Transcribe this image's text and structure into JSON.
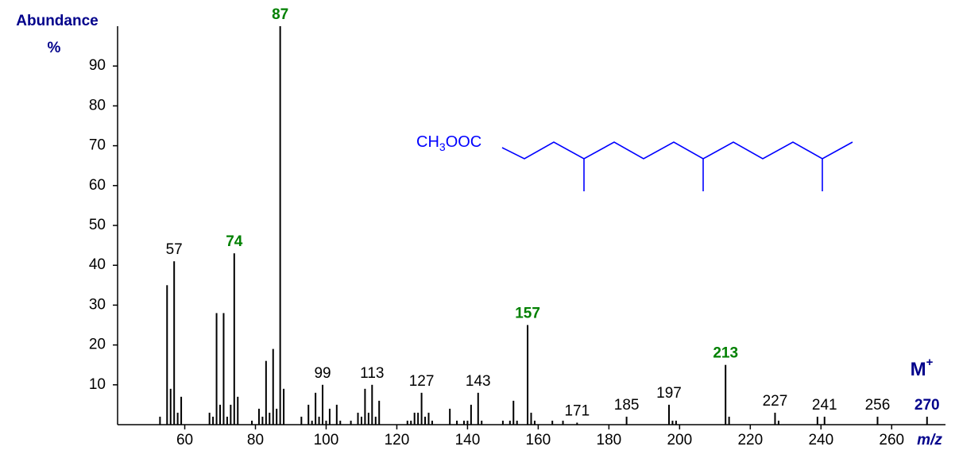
{
  "chart_data": {
    "type": "bar",
    "y_label": "Abundance",
    "y_unit": "%",
    "x_label": "m/z",
    "molecular_ion": {
      "symbol": "M",
      "charge": "+"
    },
    "structure": {
      "prefix": "CH",
      "subscript": "3",
      "suffix": "OOC"
    },
    "x": [
      53,
      55,
      56,
      57,
      58,
      59,
      67,
      68,
      69,
      70,
      71,
      72,
      73,
      74,
      75,
      79,
      81,
      82,
      83,
      84,
      85,
      86,
      87,
      88,
      93,
      95,
      96,
      97,
      98,
      99,
      100,
      101,
      103,
      104,
      107,
      109,
      110,
      111,
      112,
      113,
      114,
      115,
      123,
      124,
      125,
      126,
      127,
      128,
      129,
      130,
      135,
      137,
      139,
      140,
      141,
      143,
      144,
      150,
      152,
      153,
      154,
      157,
      158,
      159,
      164,
      167,
      171,
      185,
      197,
      198,
      199,
      213,
      214,
      227,
      228,
      239,
      241,
      256,
      270
    ],
    "values": [
      2,
      35,
      9,
      41,
      3,
      7,
      3,
      2,
      28,
      5,
      28,
      2,
      5,
      43,
      7,
      1,
      4,
      2,
      16,
      3,
      19,
      4,
      100,
      9,
      2,
      5,
      1,
      8,
      2,
      10,
      1,
      4,
      5,
      1,
      1,
      3,
      2,
      9,
      3,
      10,
      2,
      6,
      1,
      1,
      3,
      3,
      8,
      2,
      3,
      1,
      4,
      1,
      1,
      1,
      5,
      8,
      1,
      1,
      1,
      6,
      1,
      25,
      3,
      1,
      1,
      1,
      0.5,
      2,
      5,
      1,
      1,
      15,
      2,
      3,
      1,
      2,
      2,
      2,
      2
    ],
    "color": "#000000",
    "annotations": [
      {
        "text": "57",
        "x": 57,
        "color": "#000000"
      },
      {
        "text": "74",
        "x": 74,
        "color": "#008000"
      },
      {
        "text": "87",
        "x": 87,
        "color": "#008000"
      },
      {
        "text": "99",
        "x": 99,
        "color": "#000000"
      },
      {
        "text": "113",
        "x": 113,
        "color": "#000000"
      },
      {
        "text": "127",
        "x": 127,
        "color": "#000000"
      },
      {
        "text": "143",
        "x": 143,
        "color": "#000000"
      },
      {
        "text": "157",
        "x": 157,
        "color": "#008000"
      },
      {
        "text": "171",
        "x": 171,
        "color": "#000000"
      },
      {
        "text": "185",
        "x": 185,
        "color": "#000000"
      },
      {
        "text": "197",
        "x": 197,
        "color": "#000000"
      },
      {
        "text": "213",
        "x": 213,
        "color": "#008000"
      },
      {
        "text": "227",
        "x": 227,
        "color": "#000000"
      },
      {
        "text": "241",
        "x": 241,
        "color": "#000000"
      },
      {
        "text": "256",
        "x": 256,
        "color": "#000000"
      },
      {
        "text": "270",
        "x": 270,
        "color": "#00008b"
      }
    ],
    "xlim": [
      41,
      275
    ],
    "xticks": [
      60,
      80,
      100,
      120,
      140,
      160,
      180,
      200,
      220,
      240,
      260
    ],
    "ylim": [
      0,
      100
    ],
    "yticks": [
      10,
      20,
      30,
      40,
      50,
      60,
      70,
      80,
      90
    ]
  }
}
